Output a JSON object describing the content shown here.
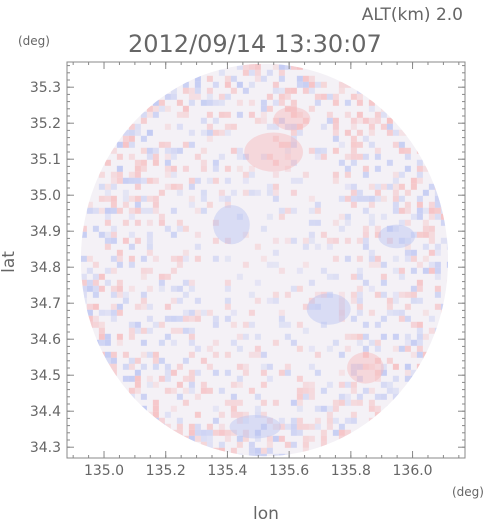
{
  "chart_data": {
    "type": "heatmap",
    "title": "2012/09/14 13:30:07",
    "subtitle": "ALT(km) 2.0",
    "xlabel": "lon",
    "ylabel": "lat",
    "x_unit": "(deg)",
    "y_unit": "(deg)",
    "xlim": [
      134.88,
      136.17
    ],
    "ylim": [
      34.27,
      35.37
    ],
    "x_ticks": [
      135.0,
      135.2,
      135.4,
      135.6,
      135.8,
      136.0
    ],
    "x_tick_labels": [
      "135.0",
      "135.2",
      "135.4",
      "135.6",
      "135.8",
      "136.0"
    ],
    "y_ticks": [
      34.3,
      34.4,
      34.5,
      34.6,
      34.7,
      34.8,
      34.9,
      35.0,
      35.1,
      35.2,
      35.3
    ],
    "y_tick_labels": [
      "34.3",
      "34.4",
      "34.5",
      "34.6",
      "34.7",
      "34.8",
      "34.9",
      "35.0",
      "35.1",
      "35.2",
      "35.3"
    ],
    "domain_center": [
      135.52,
      34.82
    ],
    "domain_radius_lon": 0.595,
    "domain_radius_lat": 0.545,
    "colors": {
      "positive": "#f6b9bb",
      "negative": "#b9c3f2",
      "neutral": "#f4f1f6",
      "axis": "#888888",
      "text": "#666666"
    },
    "grid": false
  }
}
